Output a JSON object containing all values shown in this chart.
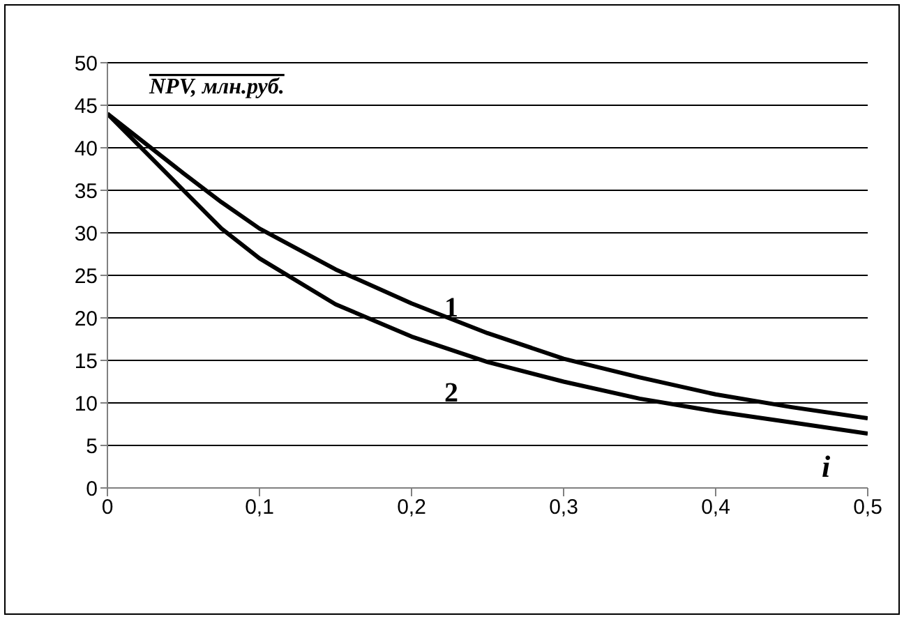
{
  "chart_data": {
    "type": "line",
    "xlabel": "i",
    "ylabel": "NPV, млн.руб.",
    "x": [
      0,
      0.05,
      0.075,
      0.1,
      0.15,
      0.2,
      0.25,
      0.3,
      0.35,
      0.4,
      0.45,
      0.5
    ],
    "series": [
      {
        "name": "1",
        "color": "#000000",
        "values": [
          44,
          37,
          33.6,
          30.5,
          25.7,
          21.7,
          18.2,
          15.2,
          13,
          11,
          9.5,
          8.2
        ]
      },
      {
        "name": "2",
        "color": "#000000",
        "values": [
          44,
          35,
          30.5,
          27,
          21.6,
          17.8,
          14.8,
          12.5,
          10.5,
          9,
          7.7,
          6.4
        ]
      }
    ],
    "xlim": [
      0,
      0.5
    ],
    "xticks": [
      0,
      {
        "value": 0.1,
        "label": "0,1"
      },
      {
        "value": 0.2,
        "label": "0,2"
      },
      {
        "value": 0.3,
        "label": "0,3"
      },
      {
        "value": 0.4,
        "label": "0,4"
      },
      {
        "value": 0.5,
        "label": "0,5"
      }
    ],
    "ylim": [
      0,
      50
    ],
    "yticks": [
      0,
      5,
      10,
      15,
      20,
      25,
      30,
      35,
      40,
      45,
      50
    ],
    "grid": "y",
    "marker": "none",
    "line_style": "solid"
  }
}
